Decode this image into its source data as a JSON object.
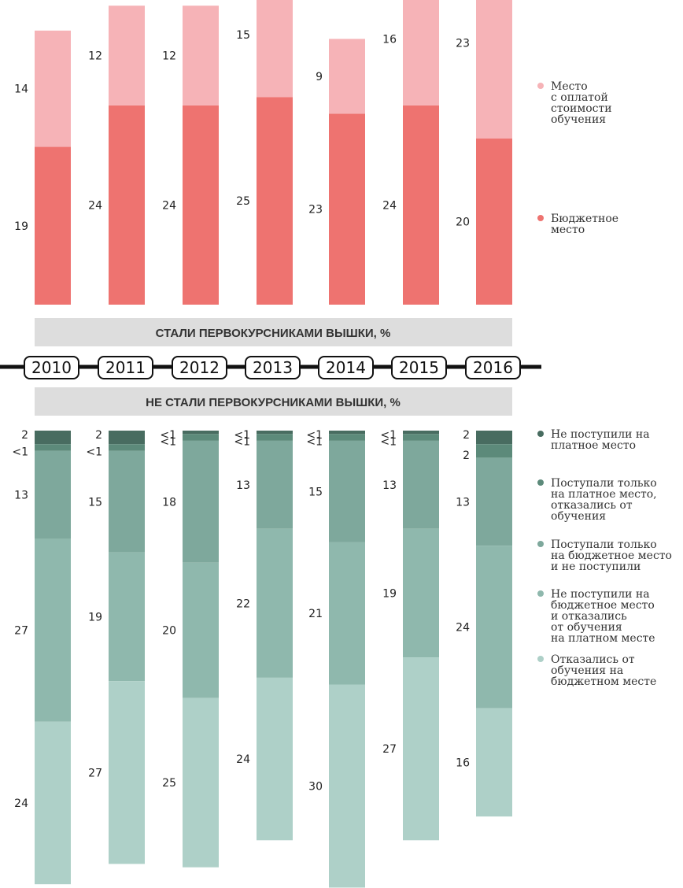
{
  "chart_data": [
    {
      "type": "bar",
      "stacked": true,
      "title": "СТАЛИ ПЕРВОКУРСНИКАМИ ВЫШКИ, %",
      "categories": [
        "2010",
        "2011",
        "2012",
        "2013",
        "2014",
        "2015",
        "2016"
      ],
      "series": [
        {
          "name": "Бюджетное место",
          "color": "#ee7370",
          "values": [
            19,
            24,
            24,
            25,
            23,
            24,
            20
          ],
          "labels": [
            "19",
            "24",
            "24",
            "25",
            "23",
            "24",
            "20"
          ]
        },
        {
          "name": "Место с оплатой стоимости обучения",
          "color": "#f6b3b7",
          "values": [
            14,
            12,
            12,
            15,
            9,
            16,
            23
          ],
          "labels": [
            "14",
            "12",
            "12",
            "15",
            "9",
            "16",
            "23"
          ]
        }
      ],
      "legend_position": "right"
    },
    {
      "type": "bar",
      "stacked": true,
      "title": "НЕ СТАЛИ ПЕРВОКУРСНИКАМИ ВЫШКИ, %",
      "categories": [
        "2010",
        "2011",
        "2012",
        "2013",
        "2014",
        "2015",
        "2016"
      ],
      "series": [
        {
          "name": "Не поступили на платное место",
          "color": "#486c60",
          "values": [
            2,
            2,
            0.5,
            0.5,
            0.5,
            0.5,
            2
          ],
          "labels": [
            "2",
            "2",
            "<1",
            "<1",
            "<1",
            "<1",
            "2"
          ]
        },
        {
          "name": "Поступали только на платное место, отказались от обучения",
          "color": "#5c8a7a",
          "values": [
            1,
            1,
            1,
            1,
            1,
            1,
            2
          ],
          "labels": [
            "<1",
            "<1",
            "<1",
            "<1",
            "<1",
            "<1",
            "2"
          ]
        },
        {
          "name": "Поступали только на бюджетное место и не поступили",
          "color": "#7ea89c",
          "values": [
            13,
            15,
            18,
            13,
            15,
            13,
            13
          ],
          "labels": [
            "13",
            "15",
            "18",
            "13",
            "15",
            "13",
            "13"
          ]
        },
        {
          "name": "Не поступили на бюджетное место и отказались от обучения на платном месте",
          "color": "#8fb8ad",
          "values": [
            27,
            19,
            20,
            22,
            21,
            19,
            24
          ],
          "labels": [
            "27",
            "19",
            "20",
            "22",
            "21",
            "19",
            "24"
          ]
        },
        {
          "name": "Отказались от обучения на бюджетном месте",
          "color": "#aed0c8",
          "values": [
            24,
            27,
            25,
            24,
            30,
            27,
            16
          ],
          "labels": [
            "24",
            "27",
            "25",
            "24",
            "30",
            "27",
            "16"
          ]
        }
      ],
      "legend_position": "right"
    }
  ],
  "legend_top": [
    {
      "lines": [
        "Место",
        "с оплатой",
        "стоимости",
        "обучения"
      ],
      "color": "#f6b3b7"
    },
    {
      "lines": [
        "Бюджетное",
        "место"
      ],
      "color": "#ee7370"
    }
  ],
  "legend_bottom": [
    {
      "lines": [
        "Не поступили на",
        "платное место"
      ],
      "color": "#486c60"
    },
    {
      "lines": [
        "Поступали только",
        "на платное место,",
        "отказались от",
        "обучения"
      ],
      "color": "#5c8a7a"
    },
    {
      "lines": [
        "Поступали только",
        "на бюджетное место",
        "и не поступили"
      ],
      "color": "#7ea89c"
    },
    {
      "lines": [
        "Не поступили на",
        "бюджетное место",
        "и отказались",
        "от обучения",
        "на платном месте"
      ],
      "color": "#8fb8ad"
    },
    {
      "lines": [
        "Отказались от",
        "обучения на",
        "бюджетном месте"
      ],
      "color": "#aed0c8"
    }
  ]
}
